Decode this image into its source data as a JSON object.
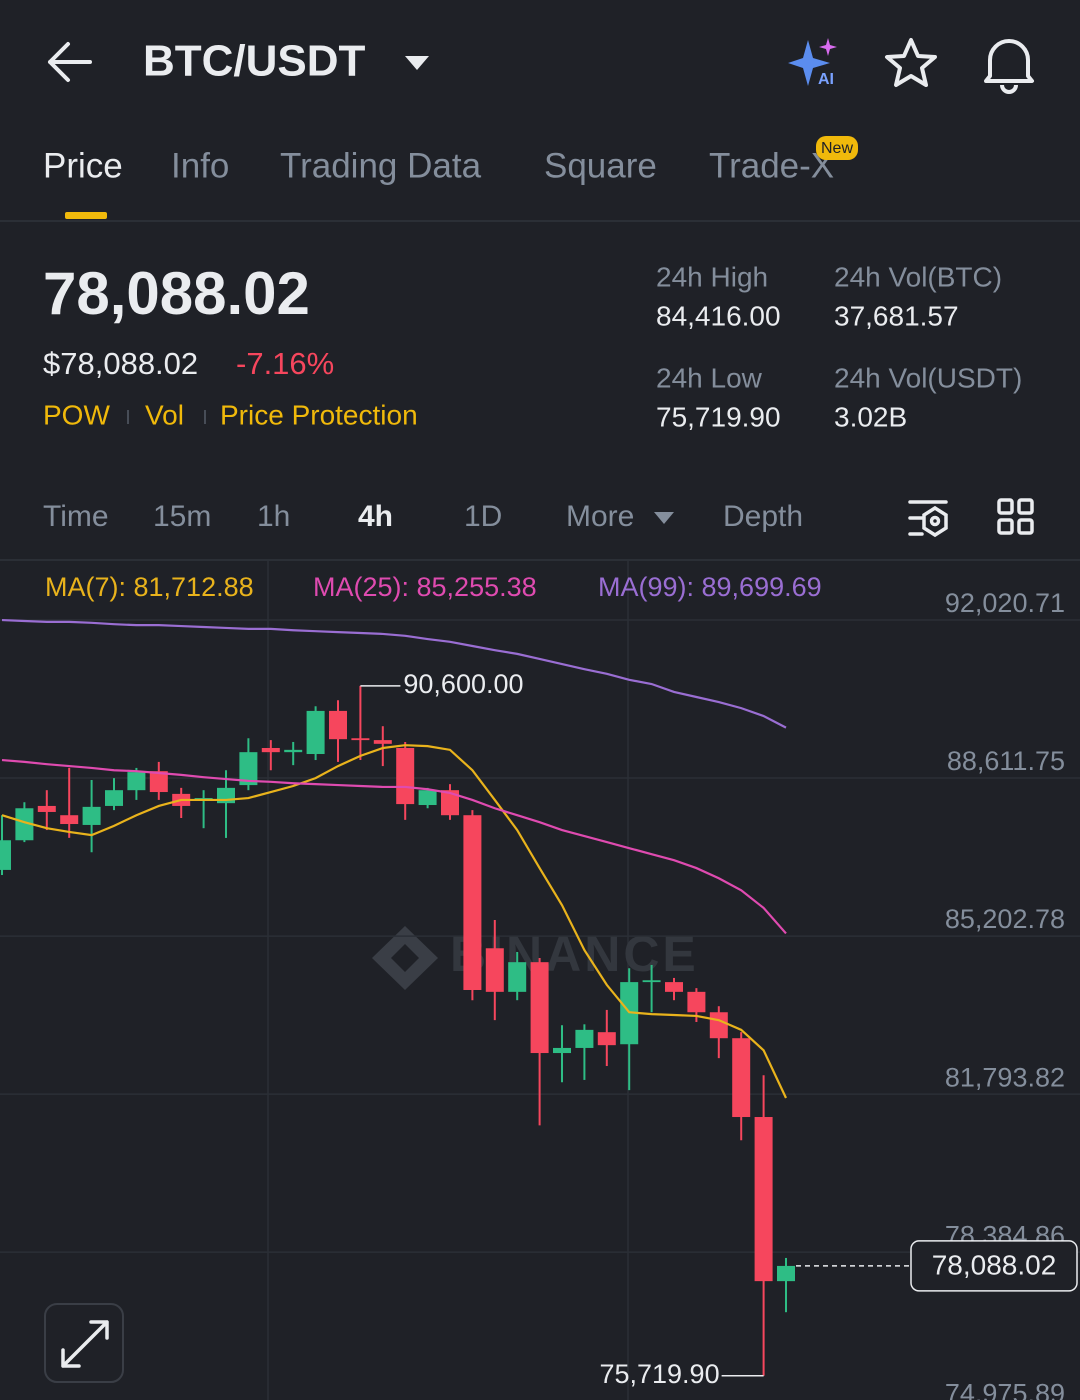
{
  "header": {
    "pair": "BTC/USDT"
  },
  "tabs": {
    "items": [
      "Price",
      "Info",
      "Trading Data",
      "Square",
      "Trade-X"
    ],
    "active": 0,
    "badge": "New"
  },
  "price": {
    "last": "78,088.02",
    "usd": "$78,088.02",
    "change": "-7.16%",
    "tags": [
      "POW",
      "Vol",
      "Price Protection"
    ]
  },
  "stats": [
    {
      "label": "24h High",
      "value": "84,416.00"
    },
    {
      "label": "24h Vol(BTC)",
      "value": "37,681.57"
    },
    {
      "label": "24h Low",
      "value": "75,719.90"
    },
    {
      "label": "24h Vol(USDT)",
      "value": "3.02B"
    }
  ],
  "intervals": {
    "items": [
      "Time",
      "15m",
      "1h",
      "4h",
      "1D",
      "More",
      "Depth"
    ],
    "active": 3
  },
  "chart_data": {
    "type": "candlestick",
    "watermark": "BINANCE",
    "categories": [
      null,
      null,
      null,
      null,
      null,
      null,
      null,
      null,
      null,
      null,
      null,
      null,
      null,
      null,
      null,
      null,
      null,
      null,
      null,
      null,
      null,
      null,
      null,
      null,
      null,
      null,
      null,
      null,
      null,
      null,
      null,
      null,
      null,
      null,
      null,
      null
    ],
    "up_color": "#2ebd85",
    "down_color": "#f6465d",
    "open": [
      86630,
      87270,
      88010,
      87810,
      87600,
      88010,
      88350,
      88760,
      88270,
      88140,
      88070,
      88460,
      89260,
      89170,
      89130,
      90060,
      89470,
      89430,
      89260,
      88030,
      88350,
      87810,
      84940,
      84000,
      84640,
      82680,
      82790,
      83130,
      82870,
      84210,
      84210,
      84000,
      83560,
      83000,
      81300,
      77760
    ],
    "high": [
      87810,
      88090,
      88350,
      88830,
      88570,
      88610,
      88830,
      88960,
      88400,
      88350,
      88780,
      89470,
      89430,
      89390,
      90160,
      90290,
      90600.0,
      89730,
      89390,
      88400,
      88480,
      87920,
      85550,
      84860,
      84730,
      83280,
      83300,
      83610,
      84510,
      84580,
      84300,
      84080,
      83690,
      83130,
      82200,
      78260
    ],
    "low": [
      86520,
      87230,
      87490,
      87320,
      87010,
      87920,
      88140,
      88140,
      87750,
      87530,
      87320,
      88350,
      88780,
      88890,
      89000,
      88960,
      89000,
      88870,
      87710,
      87960,
      87710,
      83820,
      83390,
      83820,
      81120,
      82050,
      82100,
      82400,
      81880,
      83560,
      83820,
      83350,
      82570,
      80800,
      75719.9,
      77090
    ],
    "close": [
      87270,
      87960,
      87880,
      87620,
      87990,
      88350,
      88740,
      88310,
      88010,
      88180,
      88400,
      89170,
      89170,
      89220,
      90060,
      89450,
      89430,
      89350,
      88050,
      88350,
      87810,
      84040,
      84000,
      84640,
      82680,
      82790,
      83180,
      82850,
      84210,
      84250,
      84000,
      83560,
      83000,
      81300,
      77760,
      78088.02
    ],
    "ma": [
      {
        "name": "MA(7): 81,712.88",
        "color": "#e9b31c",
        "values": [
          87810,
          87660,
          87530,
          87450,
          87380,
          87580,
          87810,
          88010,
          88140,
          88140,
          88140,
          88180,
          88310,
          88440,
          88610,
          88870,
          89090,
          89260,
          89320,
          89300,
          89220,
          88780,
          88140,
          87490,
          86670,
          85870,
          84900,
          84150,
          83560,
          83520,
          83500,
          83480,
          83390,
          83180,
          82740,
          81710
        ]
      },
      {
        "name": "MA(25): 85,255.38",
        "color": "#df4bb0",
        "values": [
          89000,
          88960,
          88910,
          88870,
          88830,
          88780,
          88760,
          88720,
          88680,
          88630,
          88590,
          88550,
          88530,
          88500,
          88480,
          88460,
          88440,
          88420,
          88420,
          88370,
          88290,
          88140,
          87960,
          87810,
          87660,
          87490,
          87360,
          87230,
          87100,
          86970,
          86840,
          86670,
          86450,
          86190,
          85810,
          85260
        ]
      },
      {
        "name": "MA(99): 89,699.69",
        "color": "#9a6ed3",
        "values": [
          92020,
          92000,
          91980,
          91980,
          91960,
          91930,
          91910,
          91910,
          91890,
          91870,
          91850,
          91830,
          91830,
          91800,
          91780,
          91760,
          91740,
          91720,
          91680,
          91610,
          91550,
          91460,
          91370,
          91290,
          91180,
          91070,
          90960,
          90860,
          90730,
          90640,
          90470,
          90360,
          90250,
          90120,
          89950,
          89700
        ]
      }
    ],
    "ylim": [
      74700,
      93315
    ],
    "yticks": [
      {
        "value": 92020.71,
        "label": "92,020.71"
      },
      {
        "value": 88611.75,
        "label": "88,611.75"
      },
      {
        "value": 85202.78,
        "label": "85,202.78"
      },
      {
        "value": 81793.82,
        "label": "81,793.82"
      },
      {
        "value": 78384.86,
        "label": "78,384.86"
      },
      {
        "value": 74975.89,
        "label": "74,975.89"
      }
    ],
    "grid": true,
    "high_label": "90,600.00",
    "low_label": "75,719.90",
    "price_label": "78,088.02"
  }
}
